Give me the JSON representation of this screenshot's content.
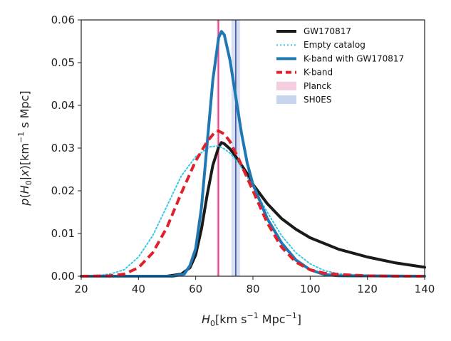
{
  "chart_data": {
    "type": "line",
    "title": "",
    "xlabel": "H_0 [km s^-1 Mpc^-1]",
    "ylabel": "p(H_0|x) [km^-1 s Mpc]",
    "xlim": [
      20,
      140
    ],
    "ylim": [
      0,
      0.06
    ],
    "x_ticks": [
      20,
      40,
      60,
      80,
      100,
      120,
      140
    ],
    "y_ticks": [
      0.0,
      0.01,
      0.02,
      0.03,
      0.04,
      0.05,
      0.06
    ],
    "x_tick_labels": [
      "20",
      "40",
      "60",
      "80",
      "100",
      "120",
      "140"
    ],
    "y_tick_labels": [
      "0.00",
      "0.01",
      "0.02",
      "0.03",
      "0.04",
      "0.05",
      "0.06"
    ],
    "grid": false,
    "legend_position": "top-right",
    "bands": [
      {
        "name": "Planck",
        "range": [
          67.4,
          68.4
        ],
        "line": 67.9,
        "color": "#f0a6c8",
        "line_color": "#e0468a"
      },
      {
        "name": "SH0ES",
        "range": [
          72.5,
          75.5
        ],
        "line": 74.0,
        "color": "#c9d4ee",
        "line_color": "#3a4f9a"
      }
    ],
    "series": [
      {
        "name": "GW170817",
        "color": "#1a1a1a",
        "style": "solid",
        "x": [
          20,
          50,
          55,
          58,
          60,
          62,
          64,
          66,
          68,
          69,
          70,
          72,
          74,
          76,
          78,
          80,
          85,
          90,
          95,
          100,
          110,
          120,
          130,
          140
        ],
        "y": [
          0,
          0,
          0.0005,
          0.002,
          0.005,
          0.011,
          0.019,
          0.026,
          0.0302,
          0.0313,
          0.031,
          0.0298,
          0.028,
          0.026,
          0.024,
          0.0215,
          0.017,
          0.0135,
          0.011,
          0.009,
          0.0063,
          0.0045,
          0.0031,
          0.0021
        ]
      },
      {
        "name": "Empty catalog",
        "color": "#38c8e8",
        "style": "dotted",
        "x": [
          20,
          25,
          30,
          35,
          40,
          45,
          50,
          55,
          60,
          65,
          68,
          70,
          72,
          75,
          80,
          85,
          90,
          95,
          100,
          105,
          110,
          120,
          130,
          140
        ],
        "y": [
          0,
          0.0001,
          0.0005,
          0.0015,
          0.0045,
          0.0095,
          0.0165,
          0.0235,
          0.028,
          0.0303,
          0.0305,
          0.0298,
          0.0288,
          0.0265,
          0.021,
          0.015,
          0.0095,
          0.0055,
          0.0029,
          0.0013,
          0.0006,
          0.0001,
          0,
          0
        ]
      },
      {
        "name": "K-band with GW170817",
        "color": "#1f77b4",
        "style": "solid",
        "x": [
          20,
          52,
          56,
          58,
          60,
          62,
          64,
          66,
          68,
          69,
          70,
          72,
          74,
          76,
          78,
          80,
          85,
          90,
          95,
          100,
          105,
          110,
          140
        ],
        "y": [
          0,
          0,
          0.0005,
          0.0025,
          0.0065,
          0.016,
          0.031,
          0.046,
          0.0558,
          0.0573,
          0.0565,
          0.0505,
          0.042,
          0.0335,
          0.0265,
          0.0215,
          0.0135,
          0.0078,
          0.0038,
          0.0015,
          0.0004,
          0.0001,
          0
        ]
      },
      {
        "name": "K-band",
        "color": "#e0202a",
        "style": "dashed",
        "x": [
          20,
          30,
          35,
          40,
          45,
          50,
          55,
          60,
          64,
          67,
          68,
          70,
          72,
          75,
          80,
          85,
          90,
          95,
          100,
          105,
          110,
          120,
          130,
          140
        ],
        "y": [
          0,
          0.0001,
          0.0005,
          0.002,
          0.0055,
          0.0115,
          0.0195,
          0.027,
          0.0315,
          0.034,
          0.034,
          0.0333,
          0.0315,
          0.0275,
          0.02,
          0.0125,
          0.0068,
          0.0033,
          0.0015,
          0.0007,
          0.0004,
          0.0001,
          0,
          0
        ]
      }
    ],
    "legend": [
      {
        "label": "GW170817",
        "kind": "line",
        "color": "#1a1a1a",
        "style": "solid"
      },
      {
        "label": "Empty catalog",
        "kind": "line",
        "color": "#38c8e8",
        "style": "dotted"
      },
      {
        "label": "K-band with GW170817",
        "kind": "line",
        "color": "#1f77b4",
        "style": "solid"
      },
      {
        "label": "K-band",
        "kind": "line",
        "color": "#e0202a",
        "style": "dashed"
      },
      {
        "label": "Planck",
        "kind": "patch",
        "color": "#f5cde0"
      },
      {
        "label": "SH0ES",
        "kind": "patch",
        "color": "#c9d4ee"
      }
    ]
  }
}
